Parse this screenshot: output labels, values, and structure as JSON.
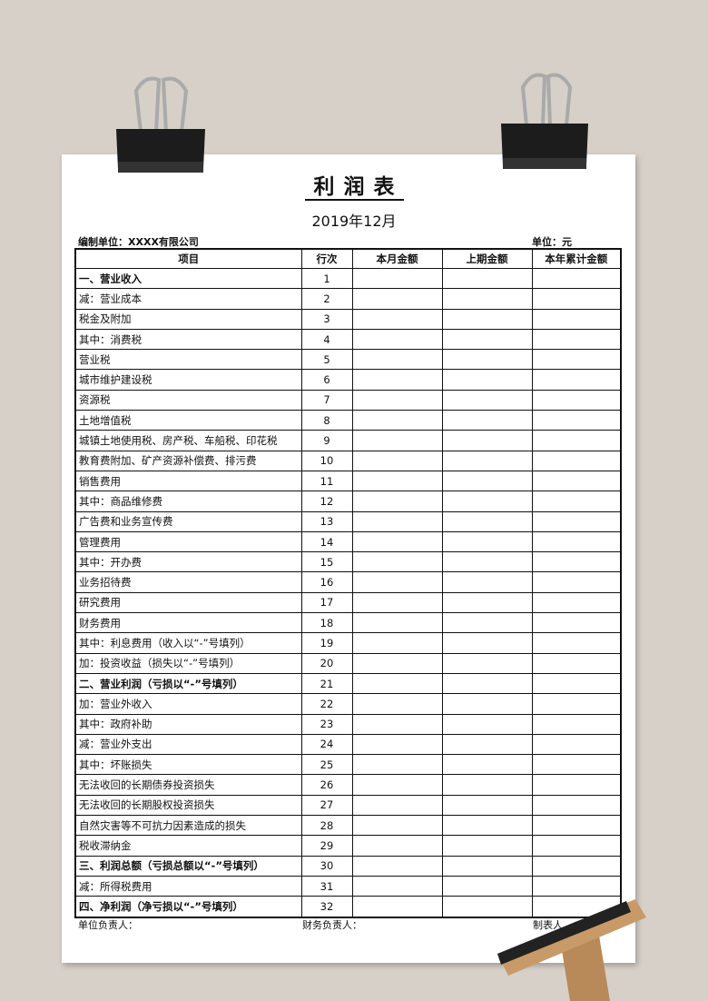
{
  "header": {
    "title": "利润表",
    "date": "2019年12月",
    "company": "编制单位：XXXX有限公司",
    "unit": "单位：元"
  },
  "table": {
    "columns": [
      "项目",
      "行次",
      "本月金额",
      "上期金额",
      "本年累计金额"
    ],
    "rows": [
      {
        "item": "一、营业收入",
        "line": 1,
        "style": "bold"
      },
      {
        "item": "减：营业成本",
        "line": 2
      },
      {
        "item": "税金及附加",
        "line": 3
      },
      {
        "item": "其中：消费税",
        "line": 4
      },
      {
        "item": "营业税",
        "line": 5
      },
      {
        "item": "城市维护建设税",
        "line": 6
      },
      {
        "item": "资源税",
        "line": 7
      },
      {
        "item": "土地增值税",
        "line": 8
      },
      {
        "item": "城镇土地使用税、房产税、车船税、印花税",
        "line": 9
      },
      {
        "item": "教育费附加、矿产资源补偿费、排污费",
        "line": 10
      },
      {
        "item": "销售费用",
        "line": 11
      },
      {
        "item": "其中：商品维修费",
        "line": 12
      },
      {
        "item": "广告费和业务宣传费",
        "line": 13
      },
      {
        "item": "管理费用",
        "line": 14
      },
      {
        "item": "其中：开办费",
        "line": 15
      },
      {
        "item": "业务招待费",
        "line": 16
      },
      {
        "item": "研究费用",
        "line": 17
      },
      {
        "item": "财务费用",
        "line": 18
      },
      {
        "item": "其中：利息费用（收入以“-”号填列）",
        "line": 19
      },
      {
        "item": "加：投资收益（损失以“-”号填列）",
        "line": 20
      },
      {
        "item": "二、营业利润（亏损以“-”号填列）",
        "line": 21,
        "style": "bold"
      },
      {
        "item": "加：营业外收入",
        "line": 22
      },
      {
        "item": "其中：政府补助",
        "line": 23
      },
      {
        "item": "减：营业外支出",
        "line": 24
      },
      {
        "item": "其中：坏账损失",
        "line": 25
      },
      {
        "item": "无法收回的长期债券投资损失",
        "line": 26
      },
      {
        "item": "无法收回的长期股权投资损失",
        "line": 27
      },
      {
        "item": "自然灾害等不可抗力因素造成的损失",
        "line": 28
      },
      {
        "item": "税收滞纳金",
        "line": 29
      },
      {
        "item": "三、利润总额（亏损总额以“-”号填列）",
        "line": 30,
        "style": "bold"
      },
      {
        "item": "减：所得税费用",
        "line": 31
      },
      {
        "item": "四、净利润（净亏损以“-”号填列）",
        "line": 32,
        "style": "bold"
      }
    ]
  },
  "footer": {
    "head": "单位负责人：",
    "finance": "财务负责人：",
    "preparer": "制表人"
  }
}
